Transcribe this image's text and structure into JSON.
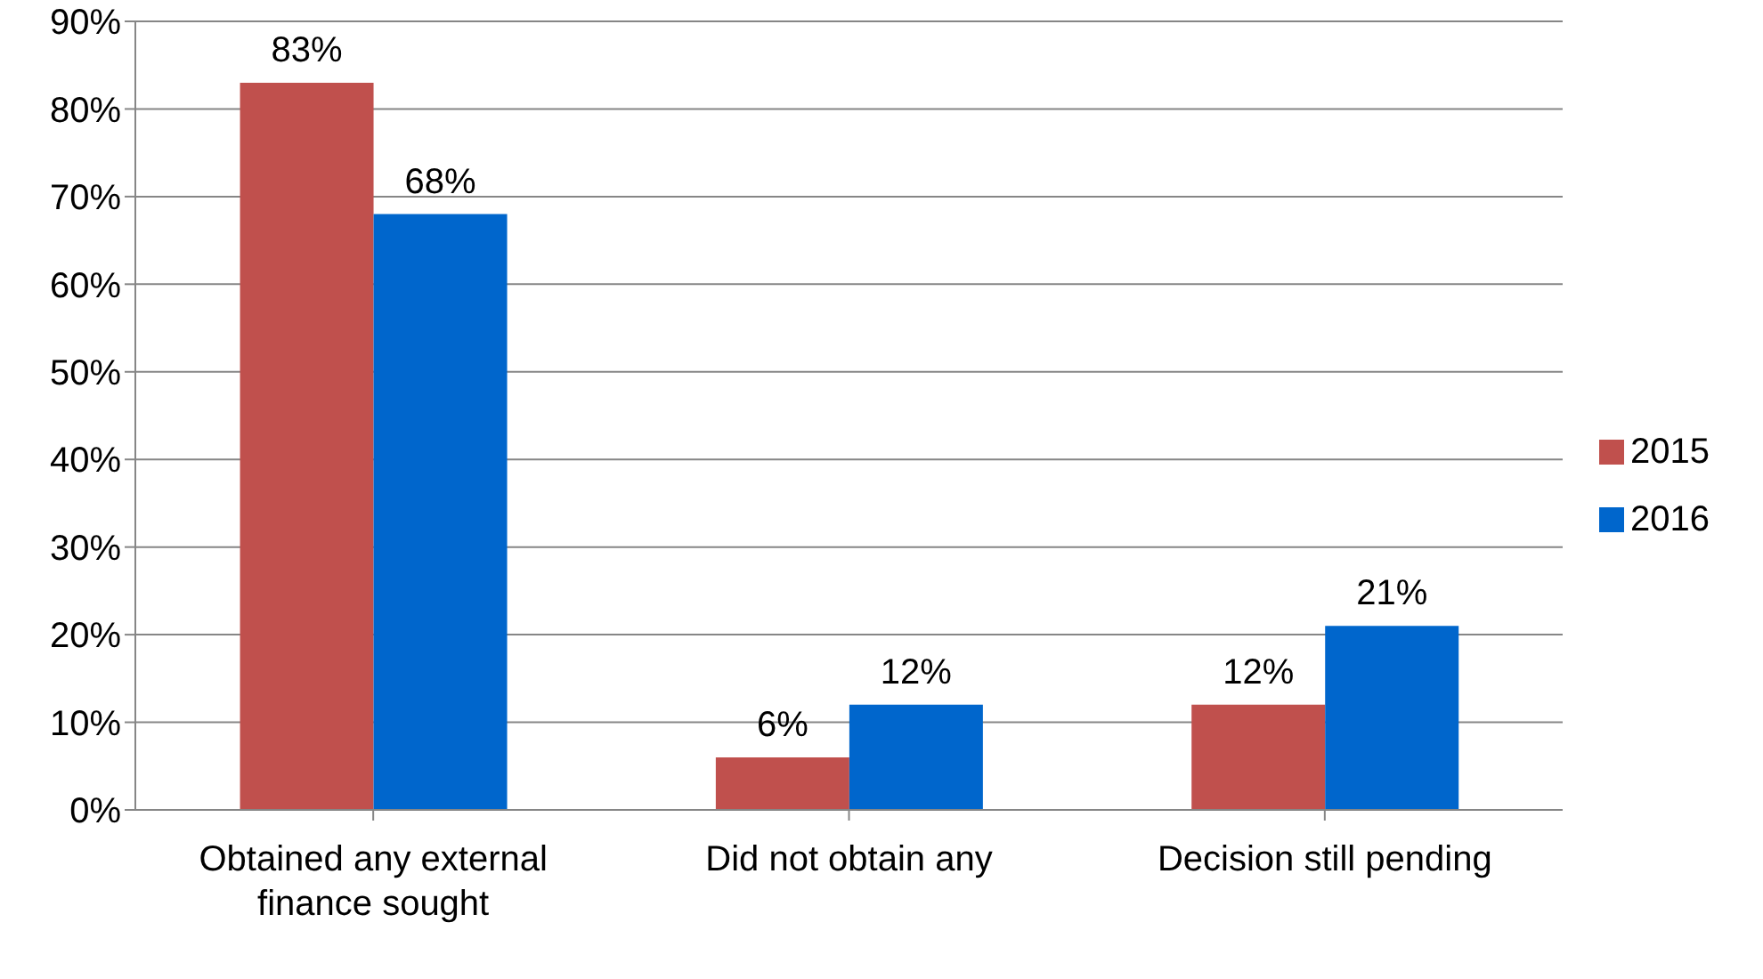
{
  "chart_data": {
    "type": "bar",
    "categories": [
      "Obtained any external finance sought",
      "Did not obtain any",
      "Decision still pending"
    ],
    "series": [
      {
        "name": "2015",
        "color": "#c0504d",
        "values": [
          83,
          6,
          12
        ],
        "value_labels": [
          "83%",
          "6%",
          "12%"
        ]
      },
      {
        "name": "2016",
        "color": "#0066cc",
        "values": [
          68,
          12,
          21
        ],
        "value_labels": [
          "68%",
          "12%",
          "21%"
        ]
      }
    ],
    "ylim": [
      0,
      90
    ],
    "yticks": [
      {
        "value": 0,
        "label": "0%"
      },
      {
        "value": 10,
        "label": "10%"
      },
      {
        "value": 20,
        "label": "20%"
      },
      {
        "value": 30,
        "label": "30%"
      },
      {
        "value": 40,
        "label": "40%"
      },
      {
        "value": 50,
        "label": "50%"
      },
      {
        "value": 60,
        "label": "60%"
      },
      {
        "value": 70,
        "label": "70%"
      },
      {
        "value": 80,
        "label": "80%"
      },
      {
        "value": 90,
        "label": "90%"
      }
    ],
    "grid": "y",
    "legend": "right"
  }
}
